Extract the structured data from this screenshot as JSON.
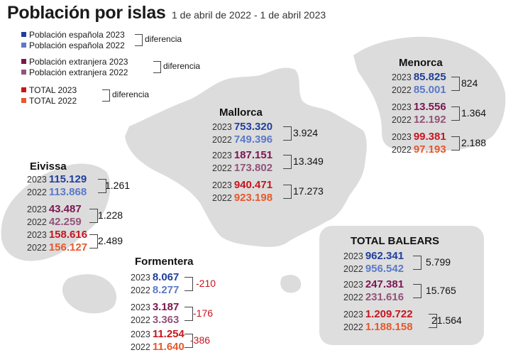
{
  "title": "Población por islas",
  "subtitle": "1 de abril de 2022 - 1 de abril 2023",
  "colors": {
    "espanola_2023": "#1f3f9c",
    "espanola_2022": "#5b79c9",
    "extranjera_2023": "#7b1650",
    "extranjera_2022": "#93537a",
    "total_2023": "#c8141e",
    "total_2022": "#e8582c",
    "map": "#dcdcdc",
    "negative": "#c8141e"
  },
  "legend": [
    {
      "a": "Población española 2023",
      "b": "Población española 2022",
      "diff": "diferencia"
    },
    {
      "a": "Población extranjera 2023",
      "b": "Población extranjera 2022",
      "diff": "diferencia"
    },
    {
      "a": "TOTAL 2023",
      "b": "TOTAL 2022",
      "diff": "diferencia"
    }
  ],
  "year_labels": {
    "y2023": "2023",
    "y2022": "2022"
  },
  "islands": {
    "menorca": {
      "name": "Menorca",
      "espanola": {
        "v2023": "85.825",
        "v2022": "85.001",
        "diff": "824"
      },
      "extranjera": {
        "v2023": "13.556",
        "v2022": "12.192",
        "diff": "1.364"
      },
      "total": {
        "v2023": "99.381",
        "v2022": "97.193",
        "diff": "2.188"
      }
    },
    "mallorca": {
      "name": "Mallorca",
      "espanola": {
        "v2023": "753.320",
        "v2022": "749.396",
        "diff": "3.924"
      },
      "extranjera": {
        "v2023": "187.151",
        "v2022": "173.802",
        "diff": "13.349"
      },
      "total": {
        "v2023": "940.471",
        "v2022": "923.198",
        "diff": "17.273"
      }
    },
    "eivissa": {
      "name": "Eivissa",
      "espanola": {
        "v2023": "115.129",
        "v2022": "113.868",
        "diff": "1.261"
      },
      "extranjera": {
        "v2023": "43.487",
        "v2022": "42.259",
        "diff": "1.228"
      },
      "total": {
        "v2023": "158.616",
        "v2022": "156.127",
        "diff": "2.489"
      }
    },
    "formentera": {
      "name": "Formentera",
      "espanola": {
        "v2023": "8.067",
        "v2022": "8.277",
        "diff": "-210"
      },
      "extranjera": {
        "v2023": "3.187",
        "v2022": "3.363",
        "diff": "-176"
      },
      "total": {
        "v2023": "11.254",
        "v2022": "11.640",
        "diff": "-386"
      }
    },
    "total_balears": {
      "name": "TOTAL BALEARS",
      "espanola": {
        "v2023": "962.341",
        "v2022": "956.542",
        "diff": "5.799"
      },
      "extranjera": {
        "v2023": "247.381",
        "v2022": "231.616",
        "diff": "15.765"
      },
      "total": {
        "v2023": "1.209.722",
        "v2022": "1.188.158",
        "diff": "21.564"
      }
    }
  }
}
